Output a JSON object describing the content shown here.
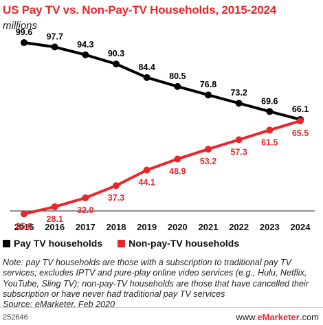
{
  "header": {
    "title": "US Pay TV vs. Non-Pay-TV Households, 2015-2024",
    "subtitle": "millions"
  },
  "colors": {
    "pay_tv": "#000000",
    "non_pay_tv": "#e8262b",
    "gridline": "#d3d3d3"
  },
  "chart_data": {
    "type": "line",
    "x": [
      "2015",
      "2016",
      "2017",
      "2018",
      "2019",
      "2020",
      "2021",
      "2022",
      "2023",
      "2024"
    ],
    "series": [
      {
        "name": "Pay TV households",
        "color": "#000000",
        "values": [
          99.6,
          97.7,
          94.3,
          90.3,
          84.4,
          80.5,
          76.8,
          73.2,
          69.6,
          66.1
        ]
      },
      {
        "name": "Non-pay-TV households",
        "color": "#e8262b",
        "values": [
          25.0,
          28.1,
          32.0,
          37.3,
          44.1,
          48.9,
          53.2,
          57.3,
          61.5,
          65.5
        ]
      }
    ],
    "ylim": [
      20,
      105
    ],
    "data_labels": true,
    "legend_placement": "bottom",
    "grid": false
  },
  "legend": [
    {
      "label": "Pay TV households",
      "color": "#000000"
    },
    {
      "label": "Non-pay-TV households",
      "color": "#e8262b"
    }
  ],
  "note": "Note: pay TV households are those with a subscription to traditional pay TV services; excludes IPTV and pure-play online video services (e.g., Hulu, Netflix, YouTube, Sling TV); non-pay-TV households are those that have cancelled their subscription or have never had traditional pay TV services",
  "source": "Source: eMarketer, Feb 2020",
  "footer": {
    "chart_id": "252646",
    "brand_prefix": "www.",
    "brand_name": "eMarketer",
    "brand_suffix": ".com"
  }
}
